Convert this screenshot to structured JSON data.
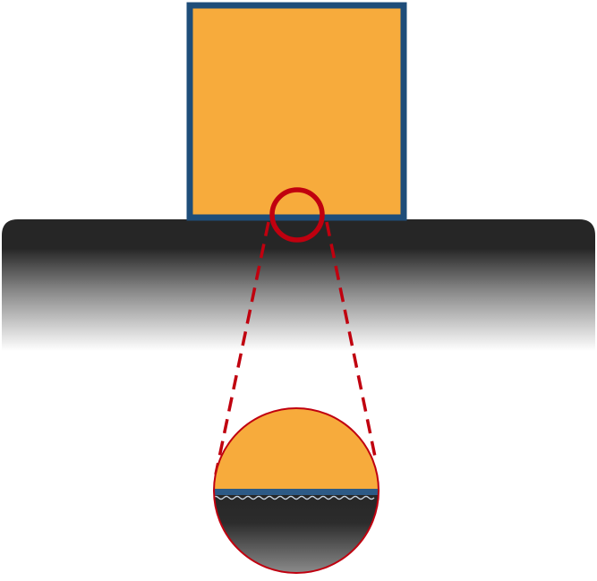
{
  "colors": {
    "background": "#ffffff",
    "block_fill": "#f7ab3c",
    "block_border": "#1e4d79",
    "surface_dark": "#262626",
    "surface_fade": "#ffffff",
    "callout_red": "#c0000f",
    "interface_line": "#2d5a86",
    "interface_roughness": "#c9d6e4"
  },
  "elements": {
    "block": "block-on-surface",
    "surface": "contact-surface",
    "focus_marker": "magnifier-circle",
    "zoom_view": "magnified-contact-interface"
  }
}
